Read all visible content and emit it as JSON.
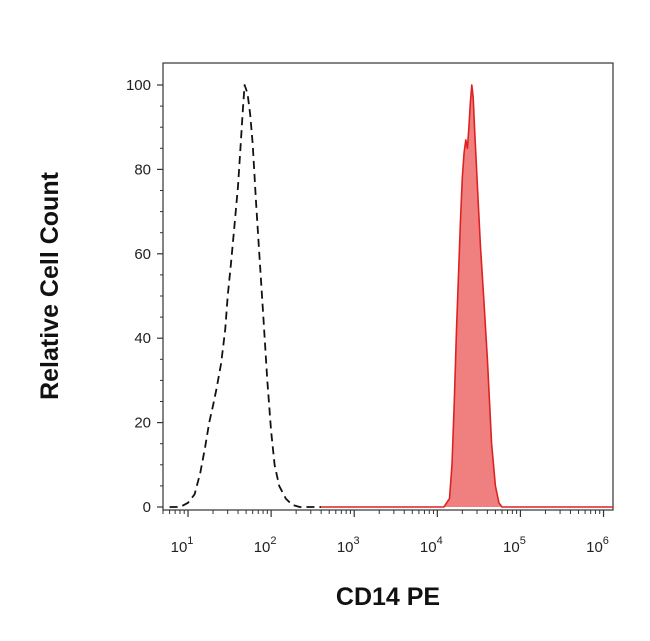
{
  "chart_data": {
    "type": "area",
    "xlabel": "CD14 PE",
    "ylabel": "Relative Cell Count",
    "x_scale": "log",
    "xlim": [
      5,
      1300000
    ],
    "ylim": [
      0,
      100
    ],
    "y_ticks": [
      0,
      20,
      40,
      60,
      80,
      100
    ],
    "x_ticks": [
      {
        "value": 10,
        "base": "10",
        "exp": "1"
      },
      {
        "value": 100,
        "base": "10",
        "exp": "2"
      },
      {
        "value": 1000,
        "base": "10",
        "exp": "3"
      },
      {
        "value": 10000,
        "base": "10",
        "exp": "4"
      },
      {
        "value": 100000,
        "base": "10",
        "exp": "5"
      },
      {
        "value": 1000000,
        "base": "10",
        "exp": "6"
      }
    ],
    "grid": false,
    "series": [
      {
        "style": "dashed outline",
        "color": "#111111",
        "points": [
          [
            6,
            0
          ],
          [
            8,
            0
          ],
          [
            10,
            1
          ],
          [
            12,
            3
          ],
          [
            14,
            8
          ],
          [
            16,
            14
          ],
          [
            18,
            20
          ],
          [
            20,
            24
          ],
          [
            22,
            28
          ],
          [
            25,
            34
          ],
          [
            28,
            42
          ],
          [
            30,
            50
          ],
          [
            33,
            58
          ],
          [
            36,
            66
          ],
          [
            40,
            76
          ],
          [
            43,
            86
          ],
          [
            46,
            95
          ],
          [
            48,
            100
          ],
          [
            52,
            98
          ],
          [
            56,
            93
          ],
          [
            60,
            86
          ],
          [
            66,
            72
          ],
          [
            72,
            60
          ],
          [
            80,
            46
          ],
          [
            90,
            30
          ],
          [
            100,
            18
          ],
          [
            110,
            10
          ],
          [
            125,
            5
          ],
          [
            150,
            2
          ],
          [
            180,
            0.5
          ],
          [
            220,
            0
          ],
          [
            400,
            0
          ]
        ]
      },
      {
        "style": "filled",
        "color": "#dd2222",
        "fill": "#f08080",
        "points": [
          [
            400,
            0
          ],
          [
            12000,
            0
          ],
          [
            14000,
            2
          ],
          [
            15000,
            10
          ],
          [
            16000,
            25
          ],
          [
            17000,
            42
          ],
          [
            18000,
            55
          ],
          [
            19000,
            68
          ],
          [
            20000,
            78
          ],
          [
            21000,
            84
          ],
          [
            22000,
            87
          ],
          [
            23000,
            85
          ],
          [
            24000,
            90
          ],
          [
            25000,
            96
          ],
          [
            26000,
            100
          ],
          [
            27000,
            97
          ],
          [
            28000,
            90
          ],
          [
            30000,
            78
          ],
          [
            33000,
            62
          ],
          [
            36000,
            50
          ],
          [
            40000,
            35
          ],
          [
            45000,
            15
          ],
          [
            50000,
            5
          ],
          [
            55000,
            1
          ],
          [
            60000,
            0
          ],
          [
            1300000,
            0
          ]
        ]
      }
    ]
  }
}
